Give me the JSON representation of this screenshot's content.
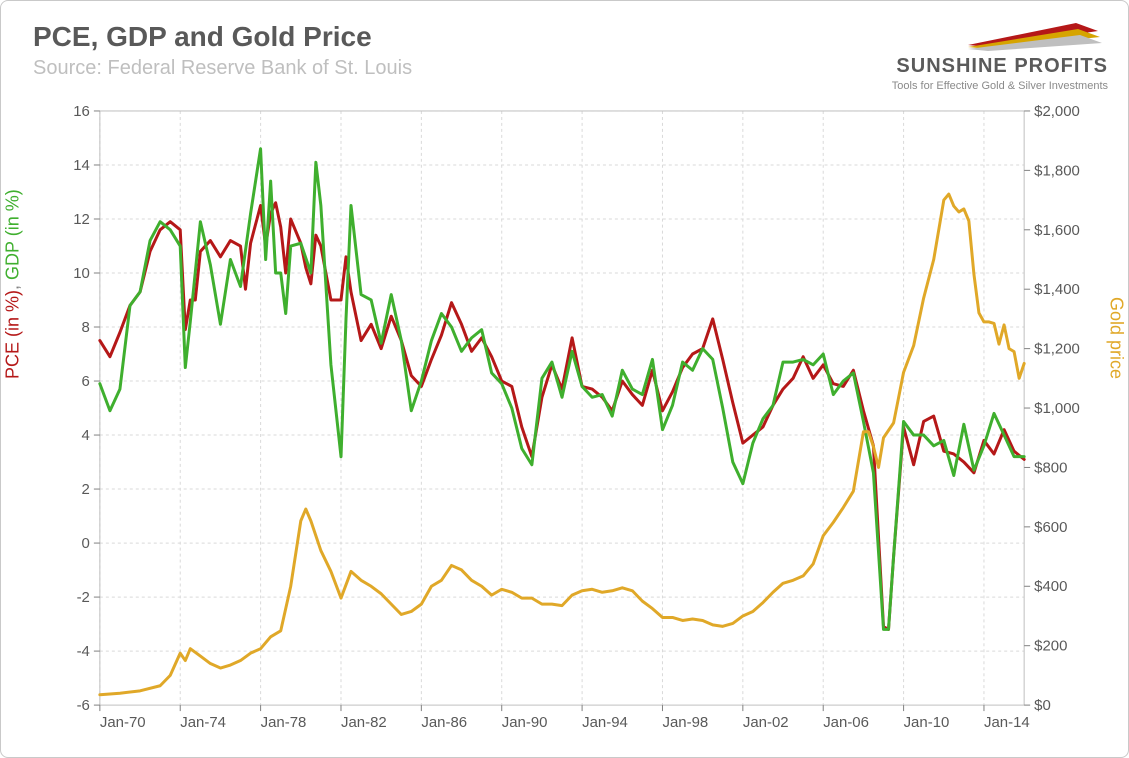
{
  "title": "PCE, GDP and Gold Price",
  "subtitle": "Source: Federal Reserve Bank of St. Louis",
  "logo": {
    "brand_a": "SUNSHINE",
    "brand_b": " PROFITS",
    "tagline": "Tools for Effective Gold & Silver Investments",
    "stripe_colors": [
      "#b51818",
      "#d6a400",
      "#bfbfbf"
    ]
  },
  "chart": {
    "type": "line",
    "background": "#ffffff",
    "grid_color": "#d9d9d9",
    "plot_border_color": "#bfbfbf",
    "x": {
      "ticks": [
        "Jan-70",
        "Jan-74",
        "Jan-78",
        "Jan-82",
        "Jan-86",
        "Jan-90",
        "Jan-94",
        "Jan-98",
        "Jan-02",
        "Jan-06",
        "Jan-10",
        "Jan-14"
      ],
      "min_index": 0,
      "max_index": 46,
      "tick_index_step": 4,
      "tick_fontsize": 15,
      "tick_color": "#595959"
    },
    "y_left": {
      "min": -6,
      "max": 16,
      "tick_step": 2,
      "tick_fontsize": 15,
      "tick_color": "#595959",
      "label_parts": [
        {
          "text": "PCE  (in %)",
          "color": "#b51818"
        },
        {
          "text": ", ",
          "color": "#808080"
        },
        {
          "text": "GDP (in %)",
          "color": "#3faf2e"
        }
      ]
    },
    "y_right": {
      "min": 0,
      "max": 2000,
      "tick_step": 200,
      "prefix": "$",
      "tick_fontsize": 15,
      "tick_color": "#595959",
      "label": "Gold price",
      "label_color": "#e0a828"
    },
    "series": [
      {
        "name": "PCE",
        "axis": "left",
        "color": "#b51818",
        "width": 3,
        "data": [
          [
            0,
            7.5
          ],
          [
            0.5,
            6.9
          ],
          [
            1,
            7.8
          ],
          [
            1.5,
            8.8
          ],
          [
            2,
            9.3
          ],
          [
            2.5,
            10.8
          ],
          [
            3,
            11.6
          ],
          [
            3.5,
            11.9
          ],
          [
            4,
            11.6
          ],
          [
            4.25,
            7.9
          ],
          [
            4.5,
            9.0
          ],
          [
            4.75,
            9.0
          ],
          [
            5,
            10.8
          ],
          [
            5.5,
            11.2
          ],
          [
            6,
            10.6
          ],
          [
            6.5,
            11.2
          ],
          [
            7,
            11.0
          ],
          [
            7.25,
            9.4
          ],
          [
            7.5,
            11.1
          ],
          [
            8,
            12.5
          ],
          [
            8.25,
            11.0
          ],
          [
            8.5,
            12.2
          ],
          [
            8.75,
            12.6
          ],
          [
            9,
            11.7
          ],
          [
            9.25,
            10.0
          ],
          [
            9.5,
            12.0
          ],
          [
            10,
            11.1
          ],
          [
            10.25,
            10.2
          ],
          [
            10.5,
            9.6
          ],
          [
            10.75,
            11.4
          ],
          [
            11,
            11.0
          ],
          [
            11.5,
            9.0
          ],
          [
            12,
            9.0
          ],
          [
            12.25,
            10.6
          ],
          [
            12.5,
            9.3
          ],
          [
            13,
            7.5
          ],
          [
            13.5,
            8.1
          ],
          [
            14,
            7.2
          ],
          [
            14.5,
            8.4
          ],
          [
            15,
            7.5
          ],
          [
            15.5,
            6.2
          ],
          [
            16,
            5.8
          ],
          [
            16.5,
            6.8
          ],
          [
            17,
            7.7
          ],
          [
            17.5,
            8.9
          ],
          [
            18,
            8.1
          ],
          [
            18.5,
            7.1
          ],
          [
            19,
            7.6
          ],
          [
            19.5,
            6.9
          ],
          [
            20,
            6.0
          ],
          [
            20.5,
            5.8
          ],
          [
            21,
            4.3
          ],
          [
            21.5,
            3.2
          ],
          [
            22,
            5.4
          ],
          [
            22.5,
            6.6
          ],
          [
            23,
            5.7
          ],
          [
            23.5,
            7.6
          ],
          [
            24,
            5.8
          ],
          [
            24.5,
            5.7
          ],
          [
            25,
            5.4
          ],
          [
            25.5,
            4.9
          ],
          [
            26,
            6.0
          ],
          [
            26.5,
            5.5
          ],
          [
            27,
            5.1
          ],
          [
            27.5,
            6.4
          ],
          [
            28,
            4.9
          ],
          [
            28.5,
            5.6
          ],
          [
            29,
            6.5
          ],
          [
            29.5,
            7.0
          ],
          [
            30,
            7.2
          ],
          [
            30.5,
            8.3
          ],
          [
            31,
            6.8
          ],
          [
            31.5,
            5.2
          ],
          [
            32,
            3.7
          ],
          [
            32.5,
            4.0
          ],
          [
            33,
            4.3
          ],
          [
            33.5,
            5.1
          ],
          [
            34,
            5.7
          ],
          [
            34.5,
            6.1
          ],
          [
            35,
            6.9
          ],
          [
            35.5,
            6.1
          ],
          [
            36,
            6.6
          ],
          [
            36.5,
            5.9
          ],
          [
            37,
            5.8
          ],
          [
            37.5,
            6.4
          ],
          [
            38,
            4.9
          ],
          [
            38.5,
            3.6
          ],
          [
            39,
            -3.1
          ],
          [
            39.25,
            -3.2
          ],
          [
            39.5,
            -0.5
          ],
          [
            40,
            4.3
          ],
          [
            40.5,
            2.9
          ],
          [
            41,
            4.5
          ],
          [
            41.5,
            4.7
          ],
          [
            42,
            3.4
          ],
          [
            42.5,
            3.3
          ],
          [
            43,
            3.0
          ],
          [
            43.5,
            2.6
          ],
          [
            44,
            3.8
          ],
          [
            44.5,
            3.3
          ],
          [
            45,
            4.2
          ],
          [
            45.5,
            3.4
          ],
          [
            46,
            3.1
          ]
        ]
      },
      {
        "name": "GDP",
        "axis": "left",
        "color": "#3faf2e",
        "width": 3,
        "data": [
          [
            0,
            5.9
          ],
          [
            0.5,
            4.9
          ],
          [
            1,
            5.7
          ],
          [
            1.5,
            8.8
          ],
          [
            2,
            9.3
          ],
          [
            2.5,
            11.2
          ],
          [
            3,
            11.9
          ],
          [
            3.5,
            11.6
          ],
          [
            4,
            11.0
          ],
          [
            4.25,
            6.5
          ],
          [
            4.5,
            8.2
          ],
          [
            5,
            11.9
          ],
          [
            5.5,
            10.3
          ],
          [
            6,
            8.1
          ],
          [
            6.5,
            10.5
          ],
          [
            7,
            9.5
          ],
          [
            7.5,
            12.2
          ],
          [
            8,
            14.6
          ],
          [
            8.25,
            10.5
          ],
          [
            8.5,
            13.4
          ],
          [
            8.75,
            10.0
          ],
          [
            9,
            10.0
          ],
          [
            9.25,
            8.5
          ],
          [
            9.5,
            11.0
          ],
          [
            10,
            11.1
          ],
          [
            10.5,
            10.0
          ],
          [
            10.75,
            14.1
          ],
          [
            11,
            12.5
          ],
          [
            11.5,
            6.6
          ],
          [
            12,
            3.2
          ],
          [
            12.25,
            8.3
          ],
          [
            12.5,
            12.5
          ],
          [
            13,
            9.2
          ],
          [
            13.5,
            9.0
          ],
          [
            14,
            7.4
          ],
          [
            14.5,
            9.2
          ],
          [
            15,
            7.5
          ],
          [
            15.5,
            4.9
          ],
          [
            16,
            6.0
          ],
          [
            16.5,
            7.5
          ],
          [
            17,
            8.5
          ],
          [
            17.5,
            8.0
          ],
          [
            18,
            7.1
          ],
          [
            18.5,
            7.6
          ],
          [
            19,
            7.9
          ],
          [
            19.5,
            6.3
          ],
          [
            20,
            5.9
          ],
          [
            20.5,
            5.0
          ],
          [
            21,
            3.5
          ],
          [
            21.5,
            2.9
          ],
          [
            22,
            6.1
          ],
          [
            22.5,
            6.7
          ],
          [
            23,
            5.4
          ],
          [
            23.5,
            7.1
          ],
          [
            24,
            5.8
          ],
          [
            24.5,
            5.4
          ],
          [
            25,
            5.5
          ],
          [
            25.5,
            4.7
          ],
          [
            26,
            6.4
          ],
          [
            26.5,
            5.7
          ],
          [
            27,
            5.5
          ],
          [
            27.5,
            6.8
          ],
          [
            28,
            4.2
          ],
          [
            28.5,
            5.1
          ],
          [
            29,
            6.7
          ],
          [
            29.5,
            6.4
          ],
          [
            30,
            7.2
          ],
          [
            30.5,
            6.8
          ],
          [
            31,
            5.0
          ],
          [
            31.5,
            3.0
          ],
          [
            32,
            2.2
          ],
          [
            32.5,
            3.7
          ],
          [
            33,
            4.6
          ],
          [
            33.5,
            5.1
          ],
          [
            34,
            6.7
          ],
          [
            34.5,
            6.7
          ],
          [
            35,
            6.8
          ],
          [
            35.5,
            6.6
          ],
          [
            36,
            7.0
          ],
          [
            36.5,
            5.5
          ],
          [
            37,
            6.0
          ],
          [
            37.5,
            6.3
          ],
          [
            38,
            4.5
          ],
          [
            38.5,
            2.6
          ],
          [
            39,
            -3.2
          ],
          [
            39.25,
            -3.2
          ],
          [
            39.5,
            -0.5
          ],
          [
            40,
            4.5
          ],
          [
            40.5,
            4.0
          ],
          [
            41,
            4.0
          ],
          [
            41.5,
            3.6
          ],
          [
            42,
            3.8
          ],
          [
            42.5,
            2.5
          ],
          [
            43,
            4.4
          ],
          [
            43.5,
            2.7
          ],
          [
            44,
            3.6
          ],
          [
            44.5,
            4.8
          ],
          [
            45,
            4.0
          ],
          [
            45.5,
            3.2
          ],
          [
            46,
            3.2
          ]
        ]
      },
      {
        "name": "Gold",
        "axis": "right",
        "color": "#e0a828",
        "width": 3,
        "data": [
          [
            0,
            35
          ],
          [
            1,
            40
          ],
          [
            2,
            48
          ],
          [
            3,
            65
          ],
          [
            3.5,
            100
          ],
          [
            4,
            175
          ],
          [
            4.25,
            150
          ],
          [
            4.5,
            190
          ],
          [
            5,
            165
          ],
          [
            5.5,
            140
          ],
          [
            6,
            125
          ],
          [
            6.5,
            135
          ],
          [
            7,
            150
          ],
          [
            7.5,
            175
          ],
          [
            8,
            190
          ],
          [
            8.5,
            230
          ],
          [
            9,
            250
          ],
          [
            9.5,
            400
          ],
          [
            10,
            620
          ],
          [
            10.25,
            660
          ],
          [
            10.5,
            620
          ],
          [
            11,
            520
          ],
          [
            11.5,
            450
          ],
          [
            12,
            360
          ],
          [
            12.5,
            450
          ],
          [
            13,
            420
          ],
          [
            13.5,
            400
          ],
          [
            14,
            375
          ],
          [
            14.5,
            340
          ],
          [
            15,
            305
          ],
          [
            15.5,
            315
          ],
          [
            16,
            340
          ],
          [
            16.5,
            400
          ],
          [
            17,
            420
          ],
          [
            17.5,
            470
          ],
          [
            18,
            455
          ],
          [
            18.5,
            420
          ],
          [
            19,
            400
          ],
          [
            19.5,
            370
          ],
          [
            20,
            390
          ],
          [
            20.5,
            380
          ],
          [
            21,
            360
          ],
          [
            21.5,
            360
          ],
          [
            22,
            340
          ],
          [
            22.5,
            340
          ],
          [
            23,
            335
          ],
          [
            23.5,
            370
          ],
          [
            24,
            385
          ],
          [
            24.5,
            390
          ],
          [
            25,
            380
          ],
          [
            25.5,
            385
          ],
          [
            26,
            395
          ],
          [
            26.5,
            385
          ],
          [
            27,
            350
          ],
          [
            27.5,
            325
          ],
          [
            28,
            295
          ],
          [
            28.5,
            295
          ],
          [
            29,
            285
          ],
          [
            29.5,
            290
          ],
          [
            30,
            285
          ],
          [
            30.5,
            270
          ],
          [
            31,
            265
          ],
          [
            31.5,
            275
          ],
          [
            32,
            300
          ],
          [
            32.5,
            315
          ],
          [
            33,
            345
          ],
          [
            33.5,
            380
          ],
          [
            34,
            410
          ],
          [
            34.5,
            420
          ],
          [
            35,
            435
          ],
          [
            35.5,
            475
          ],
          [
            36,
            570
          ],
          [
            36.5,
            615
          ],
          [
            37,
            665
          ],
          [
            37.5,
            720
          ],
          [
            38,
            920
          ],
          [
            38.25,
            920
          ],
          [
            38.5,
            870
          ],
          [
            38.75,
            800
          ],
          [
            39,
            900
          ],
          [
            39.5,
            950
          ],
          [
            40,
            1120
          ],
          [
            40.5,
            1210
          ],
          [
            41,
            1370
          ],
          [
            41.5,
            1500
          ],
          [
            42,
            1700
          ],
          [
            42.25,
            1720
          ],
          [
            42.5,
            1680
          ],
          [
            42.75,
            1660
          ],
          [
            43,
            1670
          ],
          [
            43.25,
            1630
          ],
          [
            43.5,
            1450
          ],
          [
            43.75,
            1320
          ],
          [
            44,
            1290
          ],
          [
            44.25,
            1290
          ],
          [
            44.5,
            1285
          ],
          [
            44.75,
            1215
          ],
          [
            45,
            1280
          ],
          [
            45.25,
            1200
          ],
          [
            45.5,
            1190
          ],
          [
            45.75,
            1100
          ],
          [
            46,
            1150
          ]
        ]
      }
    ]
  }
}
